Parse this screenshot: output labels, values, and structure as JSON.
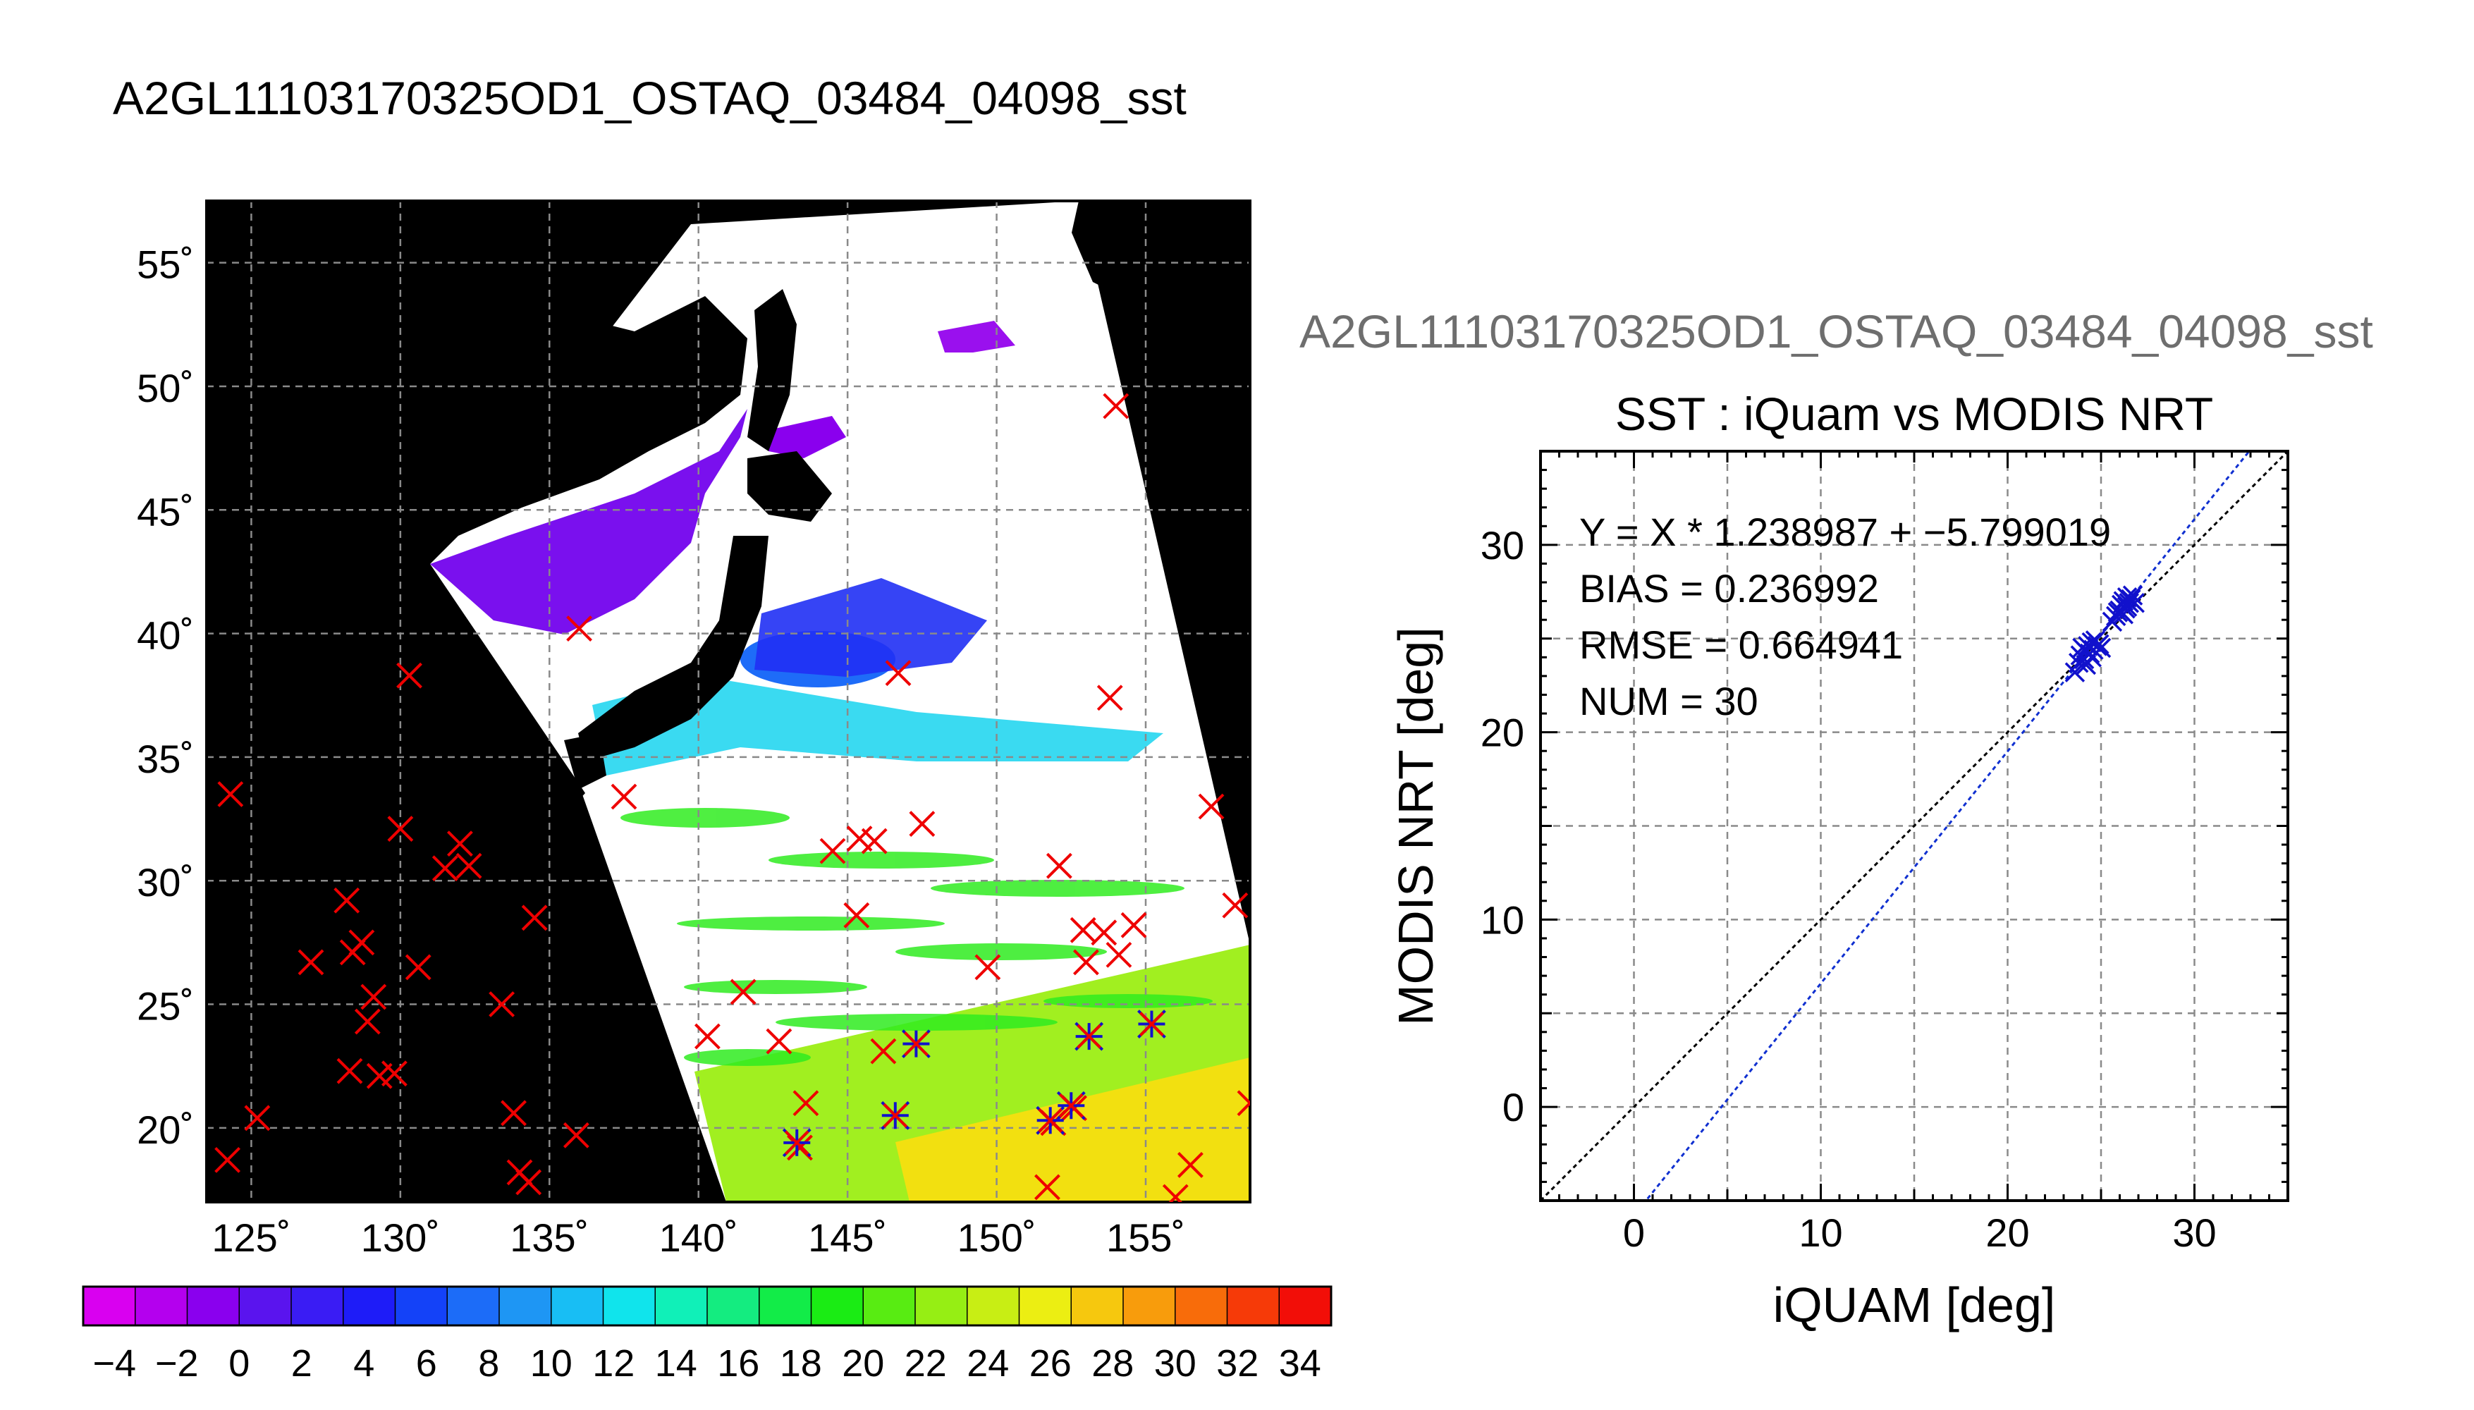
{
  "main_title": "A2GL11103170325OD1_OSTAQ_03484_04098_sst",
  "map": {
    "lat_labels": [
      "55˚",
      "50˚",
      "45˚",
      "40˚",
      "35˚",
      "30˚",
      "25˚",
      "20˚"
    ],
    "lon_labels": [
      "125˚",
      "130˚",
      "135˚",
      "140˚",
      "145˚",
      "150˚",
      "155˚"
    ],
    "colorbar_labels": [
      "−4",
      "−2",
      "0",
      "2",
      "4",
      "6",
      "8",
      "10",
      "12",
      "14",
      "16",
      "18",
      "20",
      "22",
      "24",
      "26",
      "28",
      "30",
      "32",
      "34"
    ],
    "colorbar_colors": [
      "#d900f0",
      "#b400ee",
      "#8a00ee",
      "#5a14ee",
      "#3a1cf4",
      "#1e1cf8",
      "#1442f8",
      "#1c6cf8",
      "#1e96f4",
      "#18bef4",
      "#10e4ec",
      "#10f0b8",
      "#14ec80",
      "#12ec48",
      "#1aec14",
      "#58ec12",
      "#96ee14",
      "#c8ee14",
      "#ecee12",
      "#f6c80e",
      "#f89c0c",
      "#f86c0a",
      "#f63a08",
      "#f20e08"
    ],
    "sst_range": [
      -5,
      35
    ],
    "lon_range": [
      123.5,
      158.5
    ],
    "lat_range": [
      17,
      57.5
    ],
    "cross_color_red": "#ee0000",
    "cross_color_blue": "#1111cc",
    "buoys_red_lonlat": [
      [
        124.3,
        33.5
      ],
      [
        125.2,
        20.4
      ],
      [
        124.2,
        18.7
      ],
      [
        127,
        26.7
      ],
      [
        128.2,
        29.2
      ],
      [
        128.4,
        27.1
      ],
      [
        128.7,
        27.5
      ],
      [
        128.3,
        22.3
      ],
      [
        128.9,
        24.3
      ],
      [
        129.1,
        25.3
      ],
      [
        129.3,
        22.1
      ],
      [
        129.8,
        22.2
      ],
      [
        130,
        32.1
      ],
      [
        130.3,
        38.3
      ],
      [
        130.6,
        26.5
      ],
      [
        131.5,
        30.5
      ],
      [
        132,
        31.5
      ],
      [
        132.3,
        30.6
      ],
      [
        133.4,
        25
      ],
      [
        133.8,
        20.6
      ],
      [
        134,
        18.2
      ],
      [
        134.5,
        28.5
      ],
      [
        134.3,
        17.8
      ],
      [
        135.9,
        19.7
      ],
      [
        136,
        40.2
      ],
      [
        137.5,
        33.4
      ],
      [
        141.5,
        25.5
      ],
      [
        140.3,
        23.7
      ],
      [
        142.7,
        23.5
      ],
      [
        143.4,
        19.2
      ],
      [
        143.6,
        21.0
      ],
      [
        144.5,
        31.2
      ],
      [
        145.4,
        31.7
      ],
      [
        145.9,
        31.6
      ],
      [
        145.3,
        28.6
      ],
      [
        146.7,
        38.4
      ],
      [
        146.2,
        23.1
      ],
      [
        147.5,
        32.3
      ],
      [
        149.7,
        26.5
      ],
      [
        151.7,
        17.6
      ],
      [
        152.1,
        30.6
      ],
      [
        152.9,
        28.0
      ],
      [
        153,
        26.7
      ],
      [
        153.6,
        27.9
      ],
      [
        154.1,
        27.0
      ],
      [
        154.6,
        28.2
      ],
      [
        153.8,
        37.4
      ],
      [
        154.0,
        49.2
      ],
      [
        156.0,
        17.2
      ],
      [
        156.5,
        18.5
      ],
      [
        157.2,
        33.0
      ],
      [
        158.0,
        29.0
      ],
      [
        158.5,
        21.0
      ],
      [
        151.9,
        20.2
      ],
      [
        152.6,
        20.8
      ]
    ],
    "buoys_blue_lonlat": [
      [
        143.3,
        19.4
      ],
      [
        146.6,
        20.5
      ],
      [
        147.3,
        23.4
      ],
      [
        151.8,
        20.3
      ],
      [
        152.5,
        20.9
      ],
      [
        153.1,
        23.7
      ],
      [
        155.2,
        24.2
      ]
    ]
  },
  "scatter": {
    "top_title": "A2GL11103170325OD1_OSTAQ_03484_04098_sst",
    "title": "SST : iQuam vs MODIS NRT",
    "xlabel": "iQUAM [deg]",
    "ylabel": "MODIS NRT [deg]",
    "stats": [
      "Y = X * 1.238987 + −5.799019",
      "BIAS = 0.236992",
      "RMSE = 0.664941",
      "NUM = 30"
    ],
    "x_ticks": [
      "0",
      "10",
      "20",
      "30"
    ],
    "y_ticks": [
      "0",
      "10",
      "20",
      "30"
    ]
  },
  "chart_data": {
    "type": "scatter",
    "title": "SST : iQuam vs MODIS NRT",
    "xlabel": "iQUAM [deg]",
    "ylabel": "MODIS NRT [deg]",
    "xlim": [
      -5,
      35
    ],
    "ylim": [
      -5,
      35
    ],
    "x_tick_values": [
      0,
      10,
      20,
      30
    ],
    "y_tick_values": [
      0,
      10,
      20,
      30
    ],
    "grid": true,
    "regression": {
      "slope": 1.238987,
      "intercept": -5.799019
    },
    "identity_line": true,
    "points": [
      [
        23.6,
        23.2
      ],
      [
        23.8,
        23.7
      ],
      [
        23.9,
        24.1
      ],
      [
        24.0,
        24.5
      ],
      [
        24.1,
        23.9
      ],
      [
        24.2,
        24.3
      ],
      [
        24.3,
        24.6
      ],
      [
        24.4,
        24.2
      ],
      [
        24.5,
        24.8
      ],
      [
        24.6,
        24.4
      ],
      [
        24.7,
        24.9
      ],
      [
        24.8,
        24.6
      ],
      [
        24.9,
        24.7
      ],
      [
        25.0,
        24.5
      ],
      [
        25.6,
        25.9
      ],
      [
        25.8,
        26.2
      ],
      [
        26.0,
        26.5
      ],
      [
        26.1,
        26.8
      ],
      [
        26.2,
        27.0
      ],
      [
        26.3,
        26.6
      ],
      [
        26.4,
        27.2
      ],
      [
        26.5,
        26.9
      ],
      [
        26.6,
        27.1
      ],
      [
        26.7,
        27.3
      ],
      [
        25.9,
        26.4
      ],
      [
        26.2,
        26.3
      ],
      [
        24.2,
        23.6
      ],
      [
        24.5,
        24.0
      ],
      [
        26.4,
        26.7
      ],
      [
        26.8,
        26.9
      ]
    ],
    "point_color": "#1111cc",
    "regression_color": "#1030d0",
    "identity_color": "#000000"
  }
}
